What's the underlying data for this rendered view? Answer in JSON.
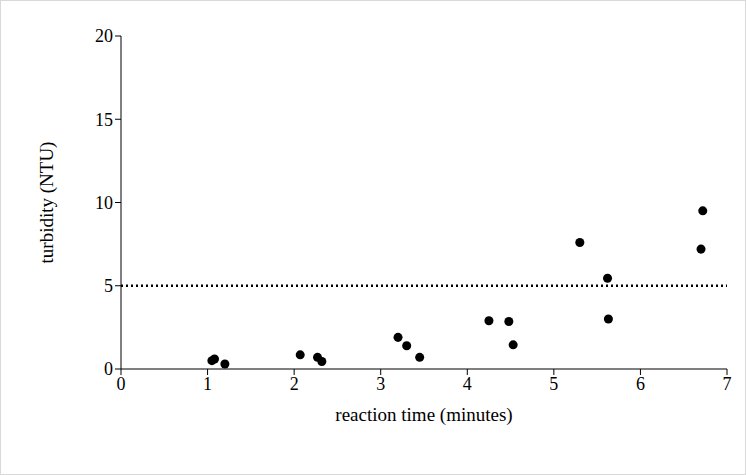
{
  "chart_data": {
    "type": "scatter",
    "x_label": "reaction time (minutes)",
    "y_label": "turbidity (NTU)",
    "x": [
      1.05,
      1.08,
      1.2,
      2.07,
      2.27,
      2.32,
      3.2,
      3.3,
      3.45,
      4.25,
      4.48,
      4.53,
      5.3,
      5.62,
      5.63,
      6.7,
      6.72
    ],
    "values": [
      0.5,
      0.6,
      0.3,
      0.85,
      0.7,
      0.45,
      1.9,
      1.4,
      0.7,
      2.9,
      2.85,
      1.45,
      7.6,
      5.45,
      3.0,
      7.2,
      9.5
    ],
    "color": "#000000",
    "marker": "circle",
    "xlim": [
      0,
      7
    ],
    "xticks": [
      0,
      1,
      2,
      3,
      4,
      5,
      6,
      7
    ],
    "ylim": [
      0,
      20
    ],
    "yticks": [
      0,
      5,
      10,
      15,
      20
    ],
    "grid": false,
    "reference_line": 5,
    "reference_line_style": "dotted"
  }
}
